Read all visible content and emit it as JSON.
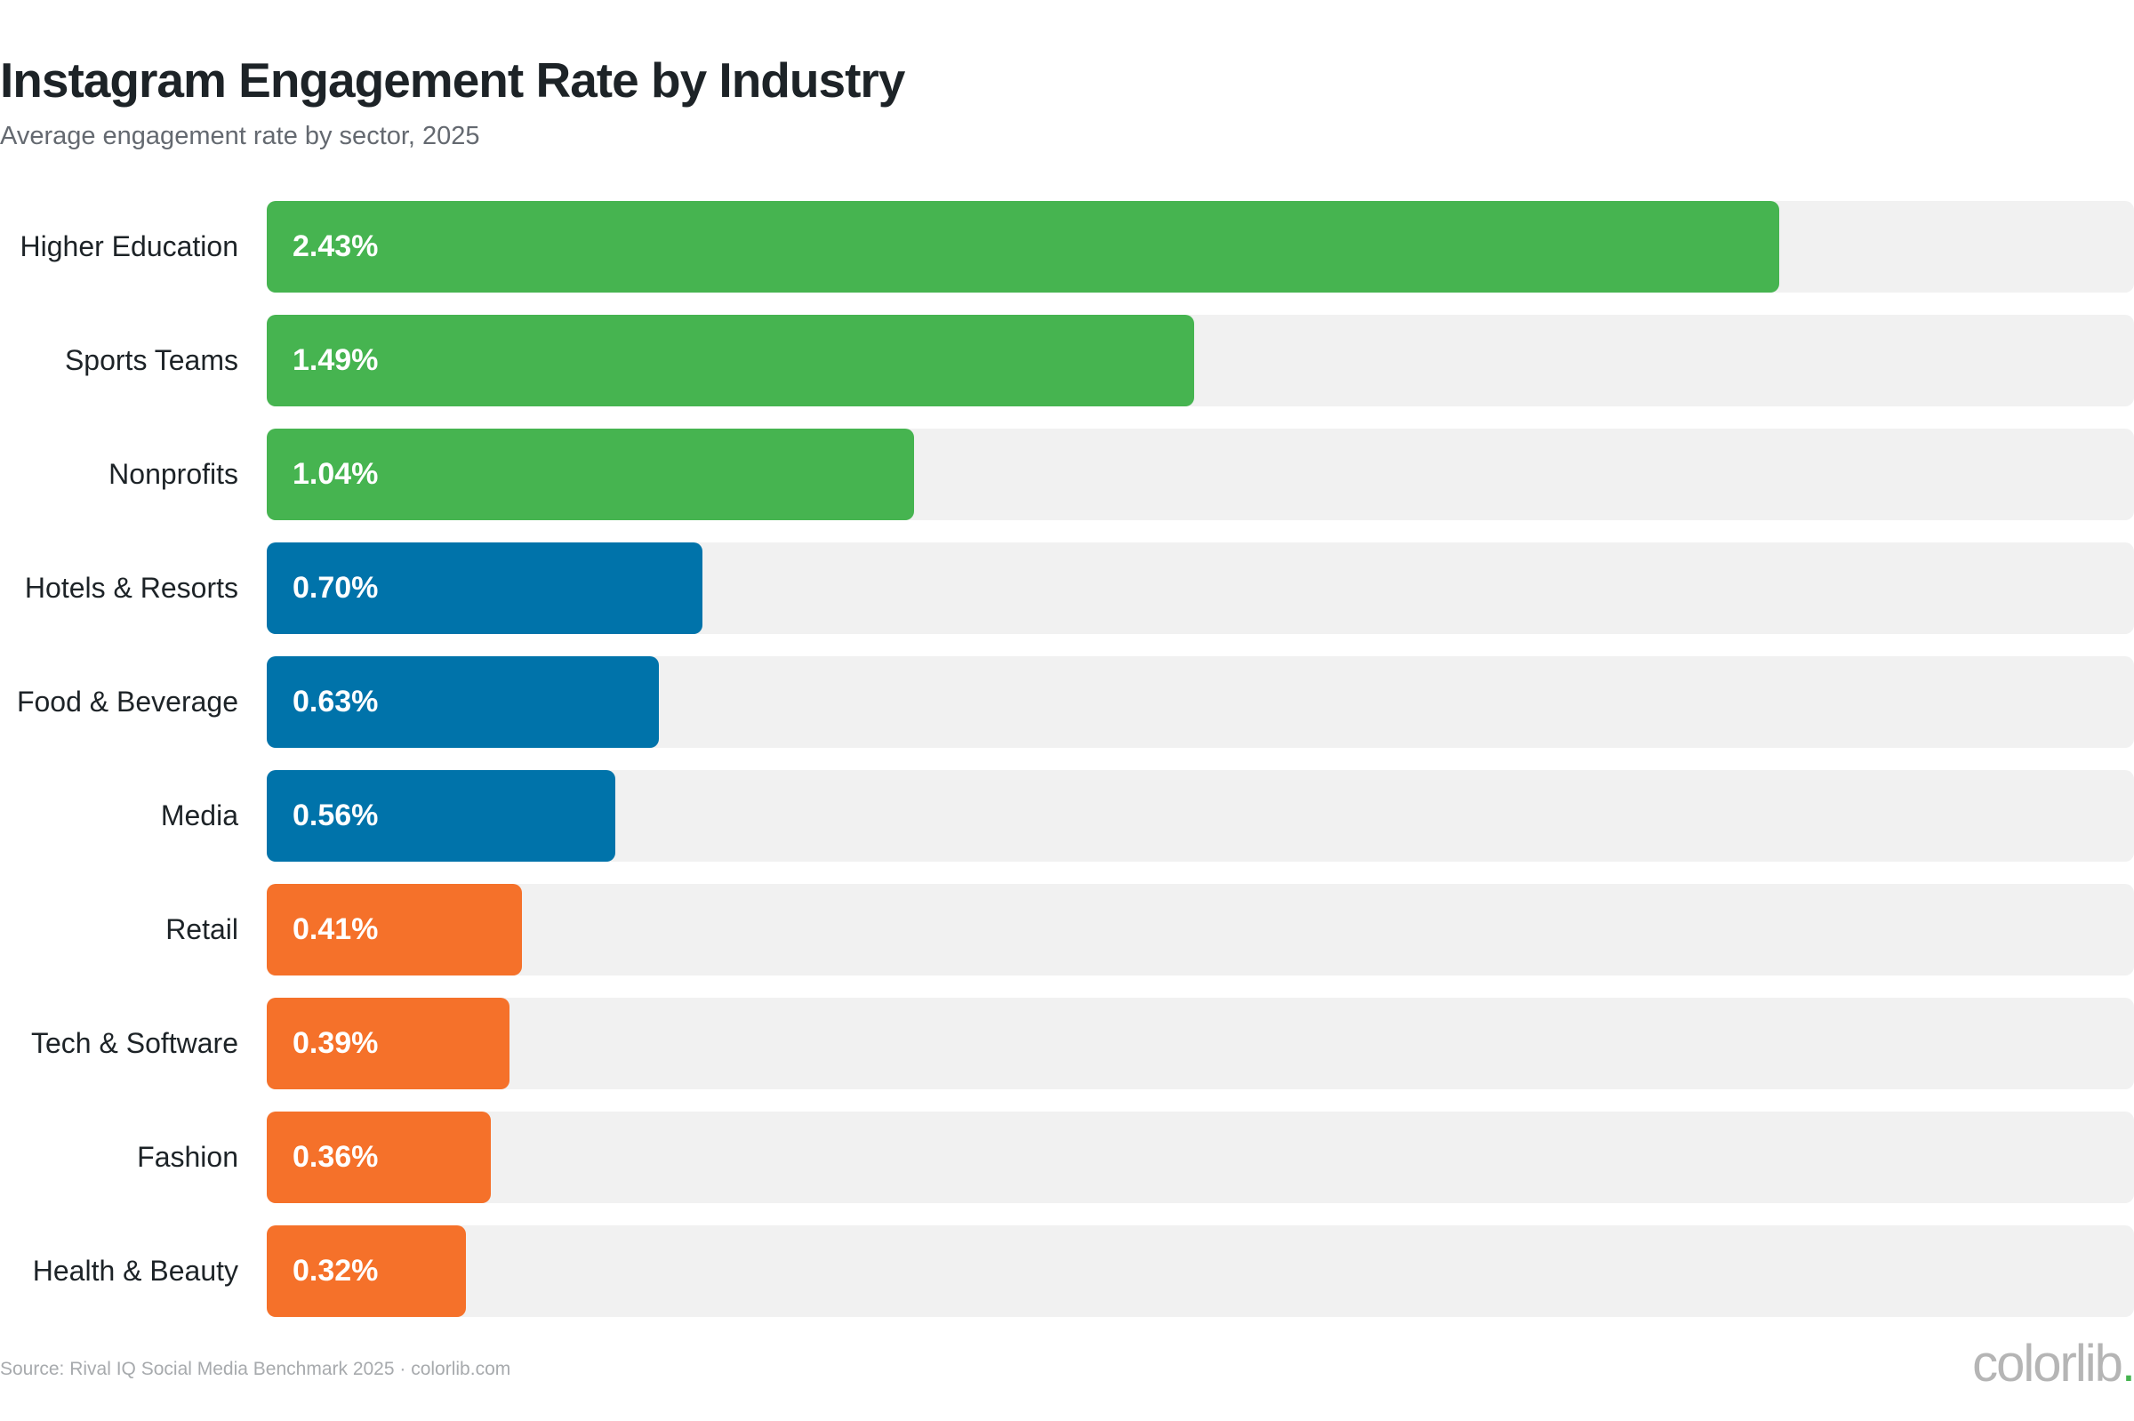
{
  "chart_data": {
    "type": "bar",
    "orientation": "horizontal",
    "title": "Instagram Engagement Rate by Industry",
    "subtitle": "Average engagement rate by sector, 2025",
    "categories": [
      "Higher Education",
      "Sports Teams",
      "Nonprofits",
      "Hotels & Resorts",
      "Food & Beverage",
      "Media",
      "Retail",
      "Tech & Software",
      "Fashion",
      "Health & Beauty"
    ],
    "values": [
      2.43,
      1.49,
      1.04,
      0.7,
      0.63,
      0.56,
      0.41,
      0.39,
      0.36,
      0.32
    ],
    "labels": [
      "2.43%",
      "1.49%",
      "1.04%",
      "0.70%",
      "0.63%",
      "0.56%",
      "0.41%",
      "0.39%",
      "0.36%",
      "0.32%"
    ],
    "unit": "%",
    "xlim": [
      0,
      3.0
    ],
    "grid": false,
    "legend": "none",
    "bar_colors": [
      "#46b450",
      "#46b450",
      "#46b450",
      "#0073aa",
      "#0073aa",
      "#0073aa",
      "#f5712a",
      "#f5712a",
      "#f5712a",
      "#f5712a"
    ],
    "track_color": "#f1f1f1"
  },
  "footer": {
    "source": "Source: Rival IQ Social Media Benchmark 2025 · colorlib.com",
    "logo": "colorlib"
  }
}
